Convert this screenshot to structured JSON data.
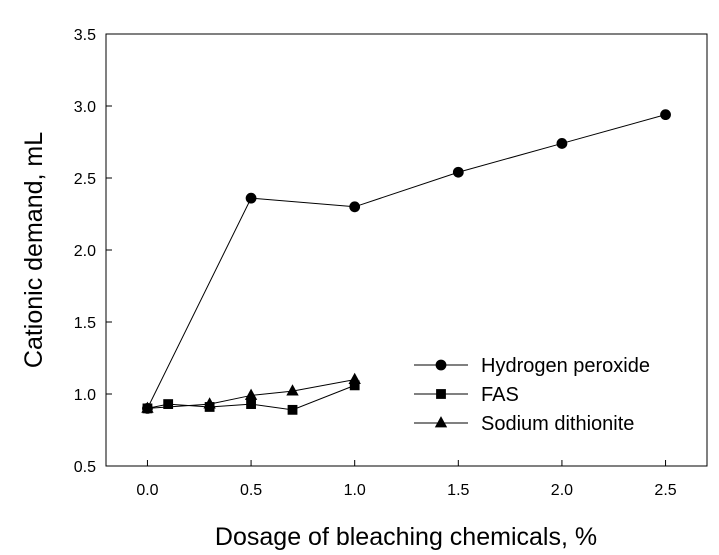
{
  "chart_data": {
    "type": "line",
    "title": "",
    "xlabel": "Dosage of bleaching chemicals, %",
    "ylabel": "Cationic demand, mL",
    "xlim": [
      -0.2,
      2.7
    ],
    "ylim": [
      0.5,
      3.5
    ],
    "xticks": [
      "0.0",
      "0.5",
      "1.0",
      "1.5",
      "2.0",
      "2.5"
    ],
    "yticks": [
      "0.5",
      "1.0",
      "1.5",
      "2.0",
      "2.5",
      "3.0",
      "3.5"
    ],
    "grid": false,
    "legend_position": "lower-right",
    "series": [
      {
        "name": "Hydrogen peroxide",
        "marker": "circle",
        "color": "#000000",
        "points": [
          [
            0.0,
            0.9
          ],
          [
            0.5,
            2.36
          ],
          [
            1.0,
            2.3
          ],
          [
            1.5,
            2.54
          ],
          [
            2.0,
            2.74
          ],
          [
            2.5,
            2.94
          ]
        ]
      },
      {
        "name": "FAS",
        "marker": "square",
        "color": "#000000",
        "points": [
          [
            0.0,
            0.9
          ],
          [
            0.1,
            0.93
          ],
          [
            0.3,
            0.91
          ],
          [
            0.5,
            0.93
          ],
          [
            0.7,
            0.89
          ],
          [
            1.0,
            1.06
          ]
        ]
      },
      {
        "name": "Sodium dithionite",
        "marker": "triangle",
        "color": "#000000",
        "points": [
          [
            0.0,
            0.9
          ],
          [
            0.3,
            0.93
          ],
          [
            0.5,
            0.99
          ],
          [
            0.7,
            1.02
          ],
          [
            1.0,
            1.1
          ]
        ]
      }
    ]
  }
}
